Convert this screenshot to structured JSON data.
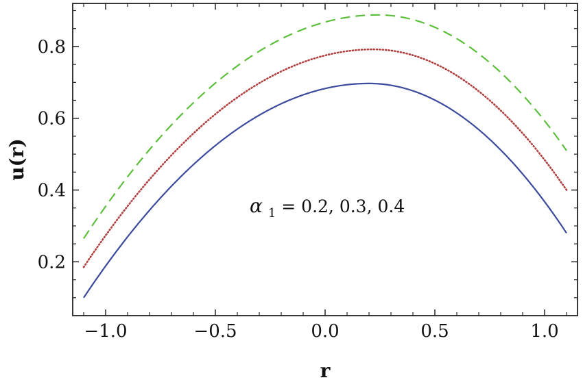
{
  "chart_data": {
    "type": "line",
    "xlabel": "r",
    "ylabel": "u(r)",
    "xlim": [
      -1.15,
      1.15
    ],
    "ylim": [
      0.05,
      0.92
    ],
    "xticks": [
      -1.0,
      -0.5,
      0.0,
      0.5,
      1.0
    ],
    "xtick_labels": [
      "−1.0",
      "−0.5",
      "0.0",
      "0.5",
      "1.0"
    ],
    "yticks": [
      0.2,
      0.4,
      0.6,
      0.8
    ],
    "ytick_labels": [
      "0.2",
      "0.4",
      "0.6",
      "0.8"
    ],
    "x_range": [
      -1.1,
      1.1
    ],
    "grid": false,
    "annotation": {
      "symbol": "α",
      "subscript": "1",
      "text": " = 0.2, 0.3, 0.4"
    },
    "series": [
      {
        "color": "#3b4a9c",
        "dash": "solid",
        "vertex": [
          0.2,
          0.697
        ],
        "y_start": 0.1,
        "y_end": 0.28
      },
      {
        "color": "#b04040",
        "dash": "dotted",
        "vertex": [
          0.22,
          0.792
        ],
        "y_start": 0.185,
        "y_end": 0.4
      },
      {
        "color": "#5cbf3c",
        "dash": "dashed",
        "vertex": [
          0.24,
          0.888
        ],
        "y_start": 0.265,
        "y_end": 0.51
      }
    ]
  }
}
